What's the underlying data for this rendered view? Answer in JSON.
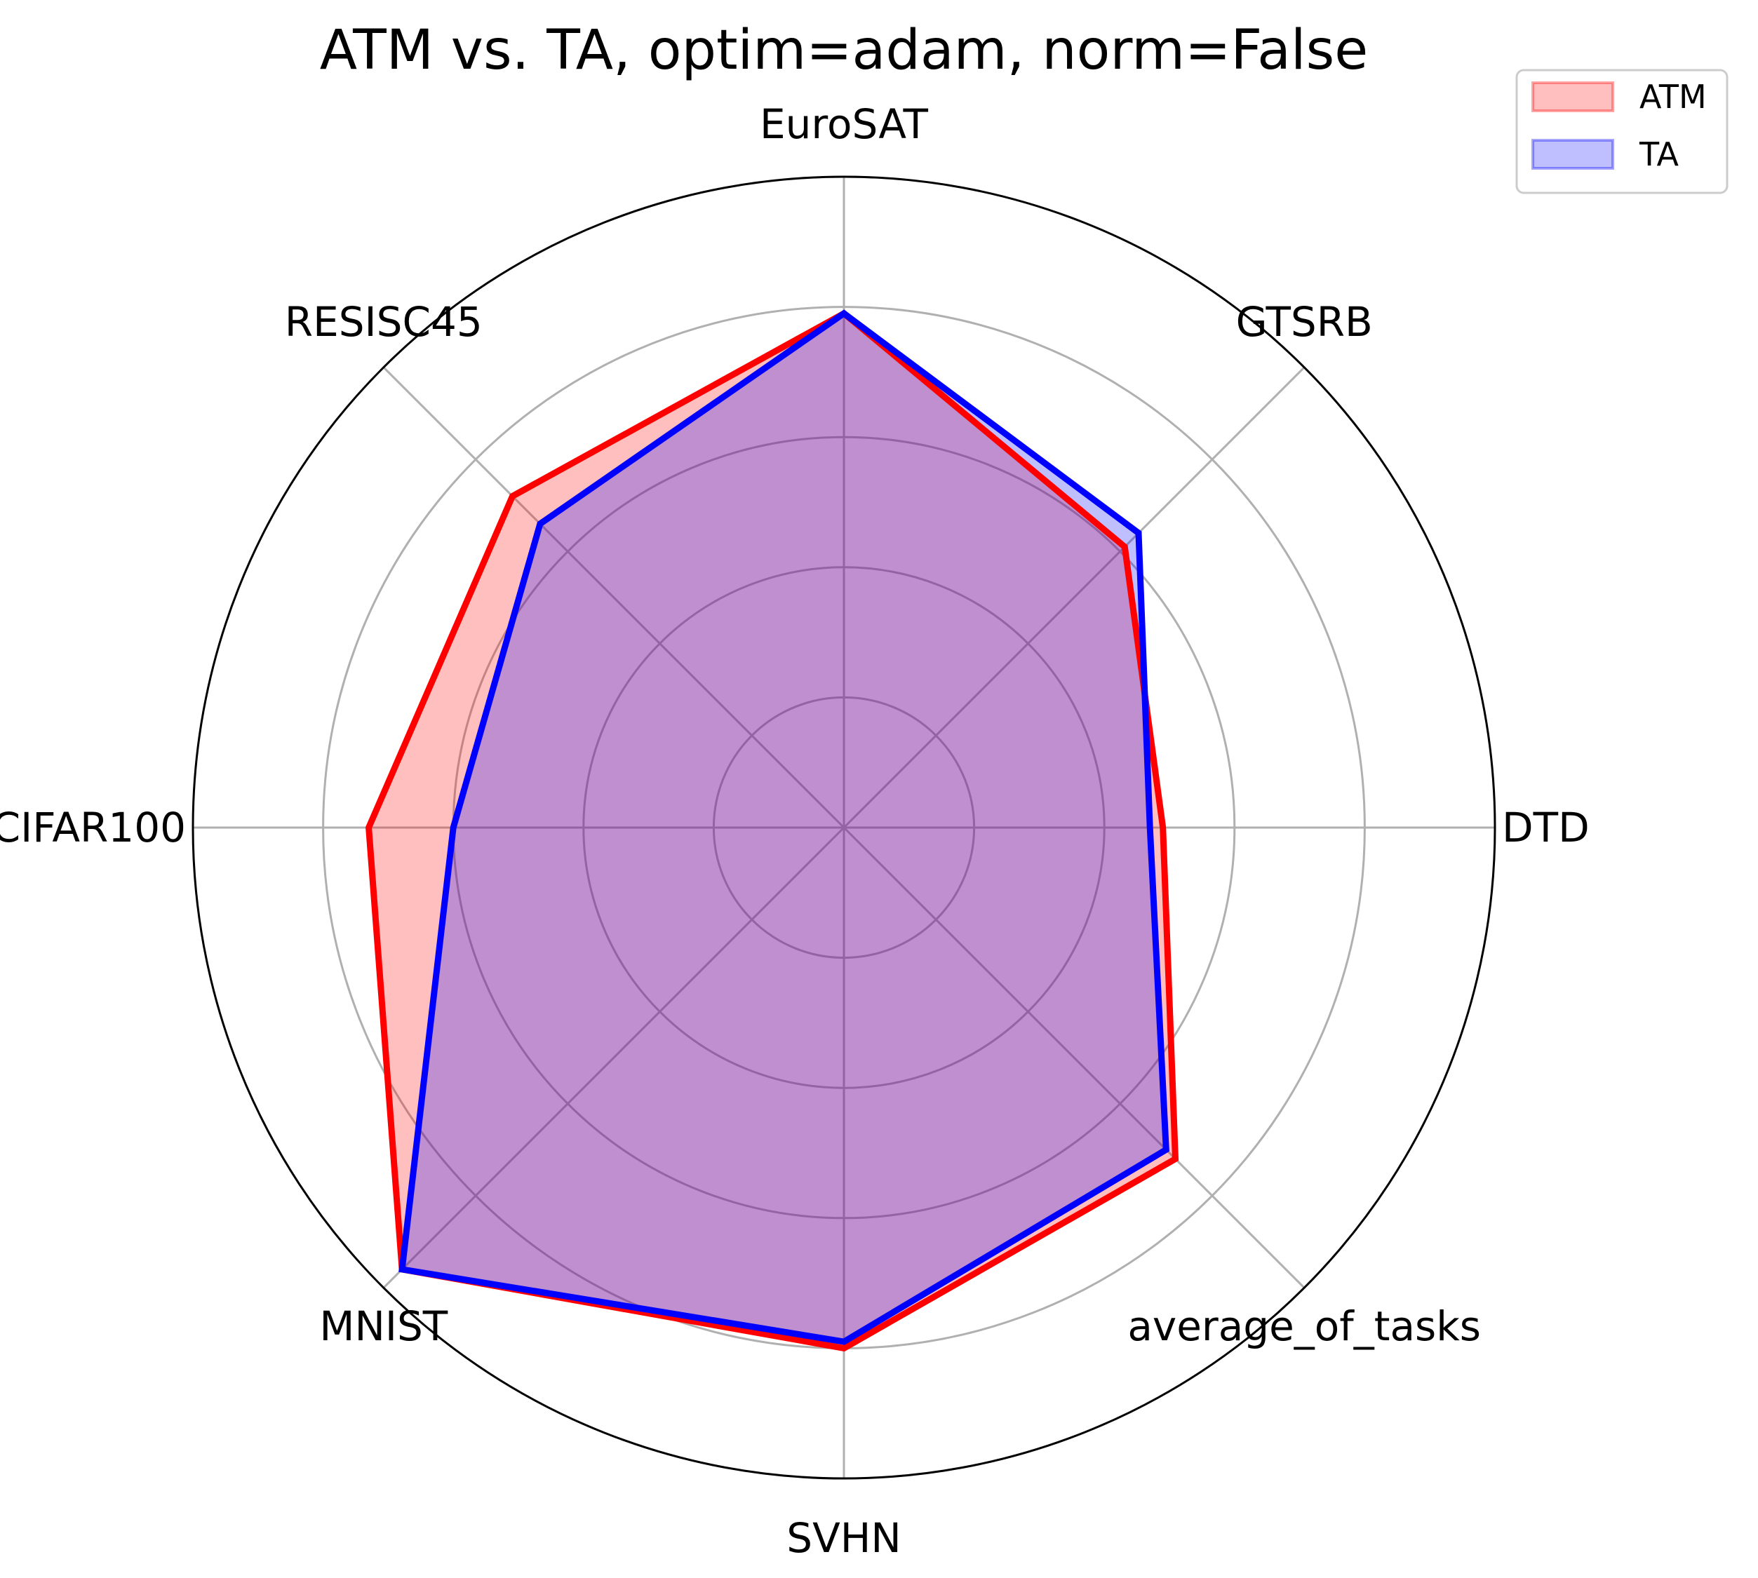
{
  "chart_data": {
    "type": "radar",
    "title": "ATM vs. TA, optim=adam, norm=False",
    "categories": [
      "EuroSAT",
      "GTSRB",
      "DTD",
      "average_of_tasks",
      "SVHN",
      "MNIST",
      "CIFAR100",
      "RESISC45"
    ],
    "rlim": [
      0,
      1
    ],
    "rgrid": [
      0.2,
      0.4,
      0.6,
      0.8
    ],
    "grid": true,
    "legend_position": "top-right",
    "series": [
      {
        "name": "ATM",
        "color": "#ff0000",
        "fill": "#ff0000",
        "fill_opacity": 0.25,
        "values": [
          0.79,
          0.61,
          0.49,
          0.72,
          0.8,
          0.96,
          0.73,
          0.72
        ]
      },
      {
        "name": "TA",
        "color": "#0000ff",
        "fill": "#0000ff",
        "fill_opacity": 0.25,
        "values": [
          0.79,
          0.64,
          0.47,
          0.7,
          0.79,
          0.96,
          0.6,
          0.66
        ]
      }
    ]
  }
}
